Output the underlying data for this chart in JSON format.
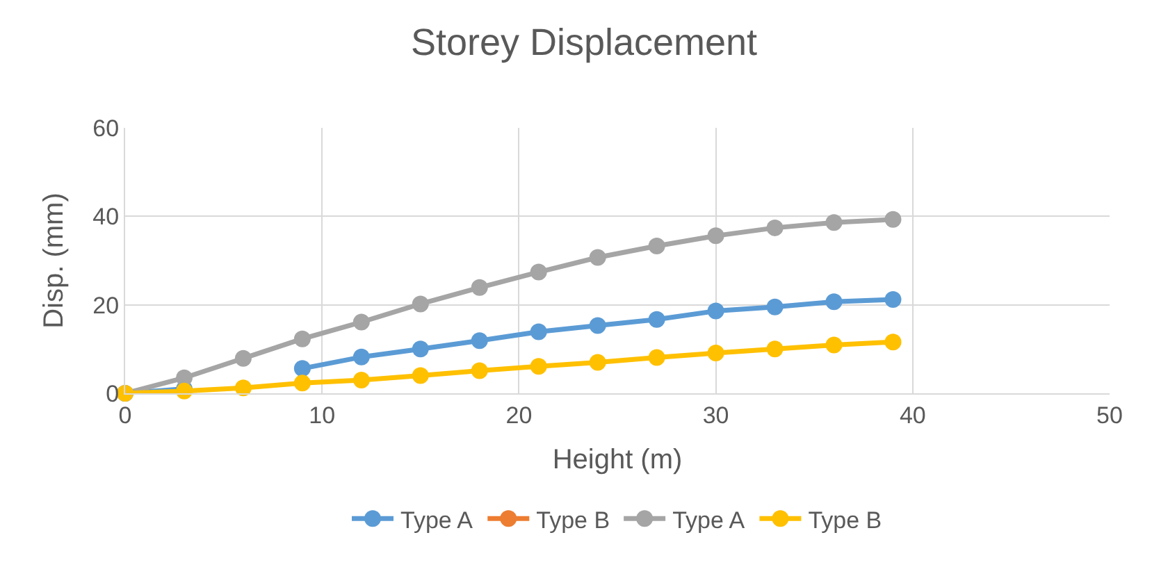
{
  "chart_data": {
    "type": "line",
    "title": "Storey Displacement",
    "xlabel": "Height (m)",
    "ylabel": "Disp. (mm)",
    "x": [
      0,
      3,
      6,
      9,
      12,
      15,
      18,
      21,
      24,
      27,
      30,
      33,
      36,
      39
    ],
    "series": [
      {
        "name": "Type A",
        "color": "#5b9bd5",
        "values": [
          0,
          1,
          null,
          5.6,
          8.2,
          10,
          11.9,
          13.9,
          15.3,
          16.7,
          18.6,
          19.5,
          20.7,
          21.2
        ]
      },
      {
        "name": "Type B",
        "color": "#ed7d31",
        "values": [
          null,
          null,
          null,
          null,
          null,
          null,
          null,
          null,
          null,
          null,
          null,
          null,
          null,
          null
        ]
      },
      {
        "name": "Type A",
        "color": "#a5a5a5",
        "values": [
          0,
          3.5,
          7.9,
          12.3,
          16.1,
          20.2,
          23.9,
          27.4,
          30.7,
          33.3,
          35.6,
          37.4,
          38.6,
          39.3
        ]
      },
      {
        "name": "Type B",
        "color": "#ffc000",
        "values": [
          0,
          0.5,
          1.2,
          2.3,
          3,
          4,
          5.1,
          6.1,
          7,
          8.1,
          9.1,
          10,
          10.9,
          11.6
        ]
      }
    ],
    "xlim": [
      0,
      50
    ],
    "xticks": [
      0,
      10,
      20,
      30,
      40,
      50
    ],
    "ylim": [
      0,
      60
    ],
    "yticks": [
      0,
      20,
      40,
      60
    ],
    "grid": true,
    "legend": "bottom",
    "marker": "circle",
    "line_style": "solid"
  }
}
